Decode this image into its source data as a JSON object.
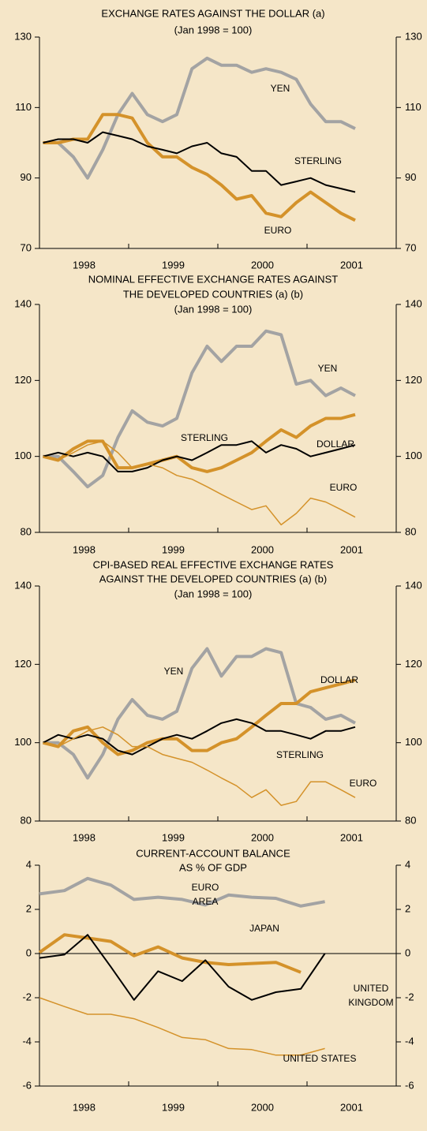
{
  "chart_data": [
    {
      "type": "line",
      "title": [
        "EXCHANGE RATES AGAINST THE DOLLAR (a)"
      ],
      "subtitle": "(Jan 1998 = 100)",
      "x": [
        1998.04,
        1998.21,
        1998.38,
        1998.54,
        1998.71,
        1998.88,
        1999.04,
        1999.21,
        1999.38,
        1999.54,
        1999.71,
        1999.88,
        2000.04,
        2000.21,
        2000.38,
        2000.54,
        2000.71,
        2000.88,
        2001.04,
        2001.21,
        2001.38,
        2001.54
      ],
      "xlim": [
        1998,
        2002
      ],
      "xticks": [
        1998,
        1999,
        2000,
        2001
      ],
      "ylim": [
        70,
        130
      ],
      "yticks": [
        70,
        90,
        110,
        130
      ],
      "series": [
        {
          "name": "YEN",
          "color": "#a3a3a3",
          "values": [
            100,
            100,
            96,
            90,
            98,
            108,
            114,
            108,
            106,
            108,
            121,
            124,
            122,
            122,
            120,
            121,
            120,
            118,
            111,
            106,
            106,
            104
          ]
        },
        {
          "name": "EURO",
          "color": "#d4922a",
          "values": [
            100,
            100,
            101,
            101,
            108,
            108,
            107,
            100,
            96,
            96,
            93,
            91,
            88,
            84,
            85,
            80,
            79,
            83,
            86,
            83,
            80,
            78
          ]
        },
        {
          "name": "STERLING",
          "color": "#000000",
          "values": [
            100,
            101,
            101,
            100,
            103,
            102,
            101,
            99,
            98,
            97,
            99,
            100,
            97,
            96,
            92,
            92,
            88,
            89,
            90,
            88,
            87,
            86
          ]
        }
      ]
    },
    {
      "type": "line",
      "title": [
        "NOMINAL EFFECTIVE EXCHANGE RATES AGAINST",
        "THE DEVELOPED COUNTRIES (a) (b)"
      ],
      "subtitle": "(Jan 1998 = 100)",
      "x": [
        1998.04,
        1998.21,
        1998.38,
        1998.54,
        1998.71,
        1998.88,
        1999.04,
        1999.21,
        1999.38,
        1999.54,
        1999.71,
        1999.88,
        2000.04,
        2000.21,
        2000.38,
        2000.54,
        2000.71,
        2000.88,
        2001.04,
        2001.21,
        2001.38,
        2001.54
      ],
      "xlim": [
        1998,
        2002
      ],
      "xticks": [
        1998,
        1999,
        2000,
        2001
      ],
      "ylim": [
        80,
        140
      ],
      "yticks": [
        80,
        100,
        120,
        140
      ],
      "series": [
        {
          "name": "YEN",
          "color": "#a3a3a3",
          "values": [
            100,
            100,
            96,
            92,
            95,
            105,
            112,
            109,
            108,
            110,
            122,
            129,
            125,
            129,
            129,
            133,
            132,
            119,
            120,
            116,
            118,
            116
          ]
        },
        {
          "name": "DOLLAR",
          "color": "#d4922a",
          "values": [
            100,
            99,
            102,
            104,
            104,
            97,
            97,
            98,
            99,
            100,
            97,
            96,
            97,
            99,
            101,
            104,
            107,
            105,
            108,
            110,
            110,
            111
          ]
        },
        {
          "name": "STERLING",
          "color": "#000000",
          "values": [
            100,
            101,
            100,
            101,
            100,
            96,
            96,
            97,
            99,
            100,
            99,
            101,
            103,
            103,
            104,
            101,
            103,
            102,
            100,
            101,
            102,
            103
          ]
        },
        {
          "name": "EURO",
          "color": "#d4922a",
          "values": [
            100,
            99,
            101,
            103,
            104,
            101,
            97,
            98,
            97,
            95,
            94,
            92,
            90,
            88,
            86,
            87,
            82,
            85,
            89,
            88,
            86,
            84
          ]
        }
      ]
    },
    {
      "type": "line",
      "title": [
        "CPI-BASED REAL EFFECTIVE EXCHANGE RATES",
        "AGAINST THE DEVELOPED COUNTRIES (a) (b)"
      ],
      "subtitle": "(Jan 1998 = 100)",
      "x": [
        1998.04,
        1998.21,
        1998.38,
        1998.54,
        1998.71,
        1998.88,
        1999.04,
        1999.21,
        1999.38,
        1999.54,
        1999.71,
        1999.88,
        2000.04,
        2000.21,
        2000.38,
        2000.54,
        2000.71,
        2000.88,
        2001.04,
        2001.21,
        2001.38,
        2001.54
      ],
      "xlim": [
        1998,
        2002
      ],
      "xticks": [
        1998,
        1999,
        2000,
        2001
      ],
      "ylim": [
        80,
        140
      ],
      "yticks": [
        80,
        100,
        120,
        140
      ],
      "series": [
        {
          "name": "YEN",
          "color": "#a3a3a3",
          "values": [
            100,
            100,
            97,
            91,
            97,
            106,
            111,
            107,
            106,
            108,
            119,
            124,
            117,
            122,
            122,
            124,
            123,
            110,
            109,
            106,
            107,
            105
          ]
        },
        {
          "name": "DOLLAR",
          "color": "#d4922a",
          "values": [
            100,
            99,
            103,
            104,
            100,
            97,
            98,
            100,
            101,
            101,
            98,
            98,
            100,
            101,
            104,
            107,
            110,
            110,
            113,
            114,
            115,
            116
          ]
        },
        {
          "name": "STERLING",
          "color": "#000000",
          "values": [
            100,
            102,
            101,
            102,
            101,
            98,
            97,
            99,
            101,
            102,
            101,
            103,
            105,
            106,
            105,
            103,
            103,
            102,
            101,
            103,
            103,
            104
          ]
        },
        {
          "name": "EURO",
          "color": "#d4922a",
          "values": [
            100,
            99,
            101,
            103,
            104,
            102,
            99,
            99,
            97,
            96,
            95,
            93,
            91,
            89,
            86,
            88,
            84,
            85,
            90,
            90,
            88,
            86
          ]
        }
      ]
    },
    {
      "type": "line",
      "title": [
        "CURRENT-ACCOUNT BALANCE",
        "AS % OF GDP"
      ],
      "x": [
        1998.0,
        1998.28,
        1998.54,
        1998.8,
        1999.06,
        1999.33,
        1999.6,
        1999.86,
        2000.12,
        2000.38,
        2000.65,
        2000.93,
        2001.2
      ],
      "xlim": [
        1998,
        2002
      ],
      "xticks": [
        1998,
        1999,
        2000,
        2001
      ],
      "ylim": [
        -6,
        4
      ],
      "yticks": [
        -6,
        -4,
        -2,
        0,
        2,
        4
      ],
      "zero_line": true,
      "series": [
        {
          "name": "JAPAN",
          "color": "#a3a3a3",
          "values": [
            2.7,
            2.85,
            3.4,
            3.1,
            2.45,
            2.55,
            2.45,
            2.2,
            2.65,
            2.55,
            2.5,
            2.15,
            2.35
          ]
        },
        {
          "name": "EURO AREA",
          "color": "#d4922a",
          "values": [
            0.05,
            0.85,
            0.7,
            0.55,
            -0.1,
            0.3,
            -0.2,
            -0.4,
            -0.5,
            -0.45,
            -0.4,
            -0.85,
            null
          ]
        },
        {
          "name": "UNITED KINGDOM",
          "color": "#000000",
          "values": [
            -0.2,
            -0.05,
            0.85,
            -0.6,
            -2.1,
            -0.8,
            -1.25,
            -0.3,
            -1.5,
            -2.1,
            -1.75,
            -1.6,
            0
          ]
        },
        {
          "name": "UNITED STATES",
          "color": "#d4922a",
          "values": [
            -2.0,
            -2.4,
            -2.75,
            -2.75,
            -2.95,
            -3.35,
            -3.8,
            -3.9,
            -4.3,
            -4.35,
            -4.6,
            -4.6,
            -4.3
          ]
        }
      ]
    }
  ]
}
